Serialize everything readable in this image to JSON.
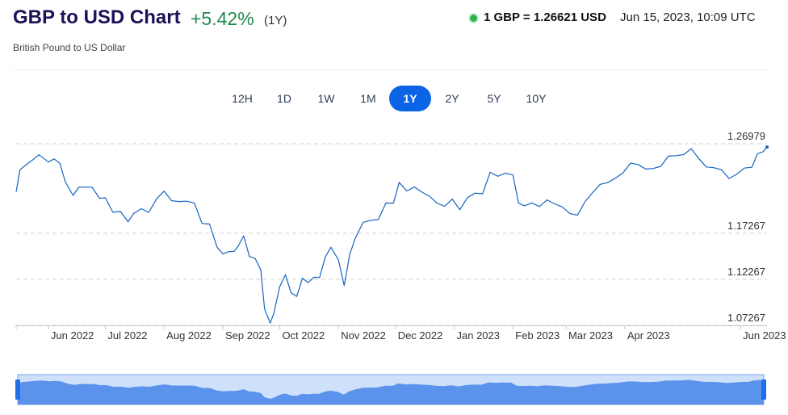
{
  "header": {
    "title": "GBP to USD Chart",
    "change": "+5.42%",
    "period": "(1Y)",
    "subtitle": "British Pound to US Dollar",
    "rate": "1 GBP = 1.26621 USD",
    "timestamp": "Jun 15, 2023, 10:09 UTC"
  },
  "ranges": [
    {
      "label": "12H",
      "active": false
    },
    {
      "label": "1D",
      "active": false
    },
    {
      "label": "1W",
      "active": false
    },
    {
      "label": "1M",
      "active": false
    },
    {
      "label": "1Y",
      "active": true
    },
    {
      "label": "2Y",
      "active": false
    },
    {
      "label": "5Y",
      "active": false
    },
    {
      "label": "10Y",
      "active": false
    }
  ],
  "colors": {
    "line": "#1565c0",
    "active_range": "#0b63e5",
    "navigator_fill": "#5b93ec",
    "navigator_bg": "#cfe0fb",
    "positive_change": "#1f8a4c"
  },
  "chart_data": {
    "type": "line",
    "title": "GBP to USD Chart",
    "ylim": [
      1.07267,
      1.26979
    ],
    "ytick_labels": [
      "1.26979",
      "1.17267",
      "1.12267",
      "1.07267"
    ],
    "yticks": [
      1.26979,
      1.17267,
      1.12267,
      1.07267
    ],
    "xlim": [
      "2022-05-15",
      "2023-06-15"
    ],
    "x_tick_labels": [
      "Jun 2022",
      "Jul 2022",
      "Aug 2022",
      "Sep 2022",
      "Oct 2022",
      "Nov 2022",
      "Dec 2022",
      "Jan 2023",
      "Feb 2023",
      "Mar 2023",
      "Apr 2023",
      "Jun 2023"
    ],
    "x_tick_dates": [
      "2022-06-01",
      "2022-07-01",
      "2022-08-01",
      "2022-09-01",
      "2022-10-01",
      "2022-11-01",
      "2022-12-01",
      "2023-01-01",
      "2023-02-01",
      "2023-03-01",
      "2023-04-01",
      "2023-06-01"
    ],
    "grid": true,
    "legend": "none",
    "series": [
      {
        "x": [
          "2022-05-15",
          "2022-05-17",
          "2022-05-20",
          "2022-05-24",
          "2022-05-27",
          "2022-06-01",
          "2022-06-04",
          "2022-06-07",
          "2022-06-10",
          "2022-06-14",
          "2022-06-17",
          "2022-06-21",
          "2022-06-24",
          "2022-06-28",
          "2022-07-01",
          "2022-07-05",
          "2022-07-09",
          "2022-07-13",
          "2022-07-16",
          "2022-07-20",
          "2022-07-24",
          "2022-07-28",
          "2022-08-01",
          "2022-08-05",
          "2022-08-09",
          "2022-08-13",
          "2022-08-17",
          "2022-08-21",
          "2022-08-25",
          "2022-08-29",
          "2022-09-01",
          "2022-09-04",
          "2022-09-07",
          "2022-09-09",
          "2022-09-12",
          "2022-09-15",
          "2022-09-18",
          "2022-09-21",
          "2022-09-23",
          "2022-09-25",
          "2022-09-26",
          "2022-09-28",
          "2022-10-01",
          "2022-10-04",
          "2022-10-07",
          "2022-10-10",
          "2022-10-13",
          "2022-10-16",
          "2022-10-19",
          "2022-10-22",
          "2022-10-25",
          "2022-10-28",
          "2022-11-01",
          "2022-11-04",
          "2022-11-07",
          "2022-11-10",
          "2022-11-14",
          "2022-11-18",
          "2022-11-22",
          "2022-11-26",
          "2022-11-30",
          "2022-12-03",
          "2022-12-07",
          "2022-12-11",
          "2022-12-15",
          "2022-12-19",
          "2022-12-23",
          "2022-12-27",
          "2022-12-31",
          "2023-01-04",
          "2023-01-08",
          "2023-01-12",
          "2023-01-16",
          "2023-01-20",
          "2023-01-24",
          "2023-01-28",
          "2023-02-01",
          "2023-02-04",
          "2023-02-07",
          "2023-02-11",
          "2023-02-15",
          "2023-02-19",
          "2023-02-23",
          "2023-02-27",
          "2023-03-03",
          "2023-03-07",
          "2023-03-11",
          "2023-03-15",
          "2023-03-19",
          "2023-03-23",
          "2023-03-27",
          "2023-03-31",
          "2023-04-04",
          "2023-04-08",
          "2023-04-12",
          "2023-04-16",
          "2023-04-20",
          "2023-04-24",
          "2023-04-28",
          "2023-05-02",
          "2023-05-06",
          "2023-05-10",
          "2023-05-14",
          "2023-05-18",
          "2023-05-22",
          "2023-05-26",
          "2023-05-30",
          "2023-06-03",
          "2023-06-07",
          "2023-06-10",
          "2023-06-13",
          "2023-06-15"
        ],
        "y": [
          1.2177,
          1.2414,
          1.2466,
          1.2526,
          1.2578,
          1.2499,
          1.2533,
          1.2487,
          1.2281,
          1.2137,
          1.2226,
          1.2227,
          1.2227,
          1.2106,
          1.2111,
          1.1954,
          1.1963,
          1.1852,
          1.1941,
          1.1993,
          1.1953,
          1.2099,
          1.2184,
          1.2079,
          1.2071,
          1.2074,
          1.2053,
          1.1832,
          1.1826,
          1.1575,
          1.1503,
          1.1526,
          1.1531,
          1.1584,
          1.1698,
          1.1474,
          1.1455,
          1.1329,
          1.0904,
          1.0805,
          1.0751,
          1.0865,
          1.1145,
          1.1277,
          1.1081,
          1.1041,
          1.1238,
          1.1191,
          1.1249,
          1.1246,
          1.1466,
          1.1575,
          1.1437,
          1.1159,
          1.1501,
          1.168,
          1.1845,
          1.1867,
          1.1875,
          1.2055,
          1.2053,
          1.2279,
          1.2185,
          1.2228,
          1.2173,
          1.2128,
          1.2052,
          1.2019,
          1.2097,
          1.1981,
          1.2112,
          1.2162,
          1.2155,
          1.2388,
          1.2345,
          1.2379,
          1.2359,
          1.2053,
          1.2024,
          1.2055,
          1.2016,
          1.2088,
          1.2045,
          1.2012,
          1.1941,
          1.1923,
          1.2067,
          1.2167,
          1.2257,
          1.2276,
          1.2324,
          1.238,
          1.2486,
          1.2473,
          1.2423,
          1.2429,
          1.2453,
          1.2563,
          1.2568,
          1.258,
          1.2644,
          1.2538,
          1.2446,
          1.2438,
          1.2416,
          1.232,
          1.2366,
          1.2433,
          1.2443,
          1.2589,
          1.2612,
          1.2662
        ]
      }
    ]
  }
}
